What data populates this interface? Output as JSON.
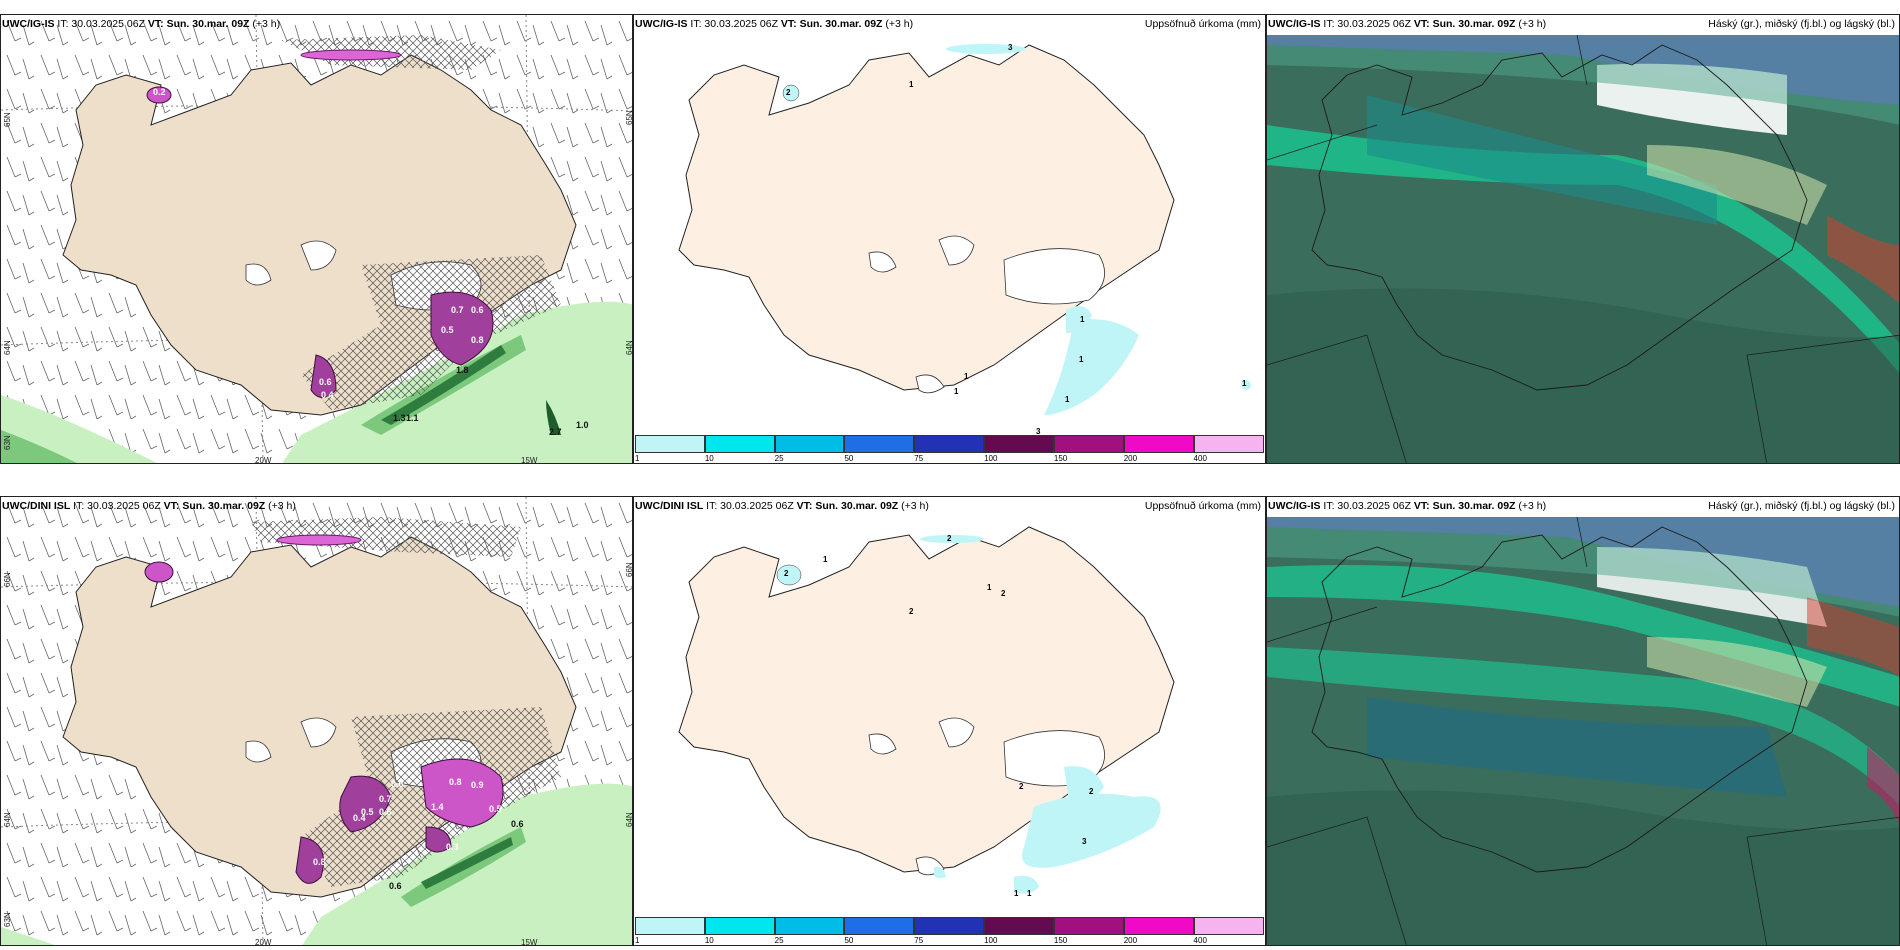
{
  "rows": [
    {
      "model": "UWC/IG-IS",
      "it": "IT: 30.03.2025 06Z",
      "vt_label": "VT:",
      "vt": "Sun. 30.mar. 09Z",
      "lead": "(+3 h)",
      "lat_labels": [
        "65N",
        "64N",
        "63N"
      ],
      "lon_labels": [
        "20W",
        "15W"
      ],
      "right_lat_labels": [
        "65N",
        "64N"
      ],
      "wind_values": [
        "0.2",
        "0.7",
        "0.6",
        "0.5",
        "0.8",
        "0.4",
        "0.6",
        "1.3",
        "1.1",
        "1.8",
        "2.7",
        "1.0"
      ],
      "precip_values": [
        "3",
        "1",
        "2",
        "1",
        "1",
        "1",
        "1",
        "1",
        "1",
        "3"
      ]
    },
    {
      "model": "UWC/DINI ISL",
      "it": "IT: 30.03.2025 06Z",
      "vt_label": "VT:",
      "vt": "Sun. 30.mar. 09Z",
      "lead": "(+3 h)",
      "lat_labels": [
        "66N",
        "64N",
        "63N"
      ],
      "lon_labels": [
        "20W",
        "15W"
      ],
      "right_lat_labels": [
        "66N",
        "64N"
      ],
      "wind_values": [
        "0.6",
        "0.7",
        "0.5",
        "0.6",
        "0.4",
        "0.8",
        "0.9",
        "1.4",
        "0.3",
        "0.5",
        "0.6",
        "0.6",
        "0.8"
      ],
      "precip_values": [
        "2",
        "1",
        "1",
        "2",
        "2",
        "2",
        "2",
        "2",
        "3",
        "1",
        "1"
      ]
    }
  ],
  "precip_title": "Uppsöfnuð úrkoma (mm)",
  "cloud_title": "Háský (gr.), miðský (fj.bl.) og lágský (bl.)",
  "colorbar": {
    "ticks": [
      "1",
      "10",
      "25",
      "50",
      "75",
      "100",
      "150",
      "200",
      "400"
    ],
    "colors": [
      "#bff5f7",
      "#00e6ee",
      "#00bde8",
      "#1e6ee6",
      "#2232b4",
      "#640a50",
      "#a0107e",
      "#f00ac8",
      "#f5b4f0"
    ]
  },
  "colors": {
    "land": "#eedfcb",
    "land_precip": "#fdf0e3",
    "ocean_cloud": "#3a6d5c",
    "hatch": "#444444"
  }
}
